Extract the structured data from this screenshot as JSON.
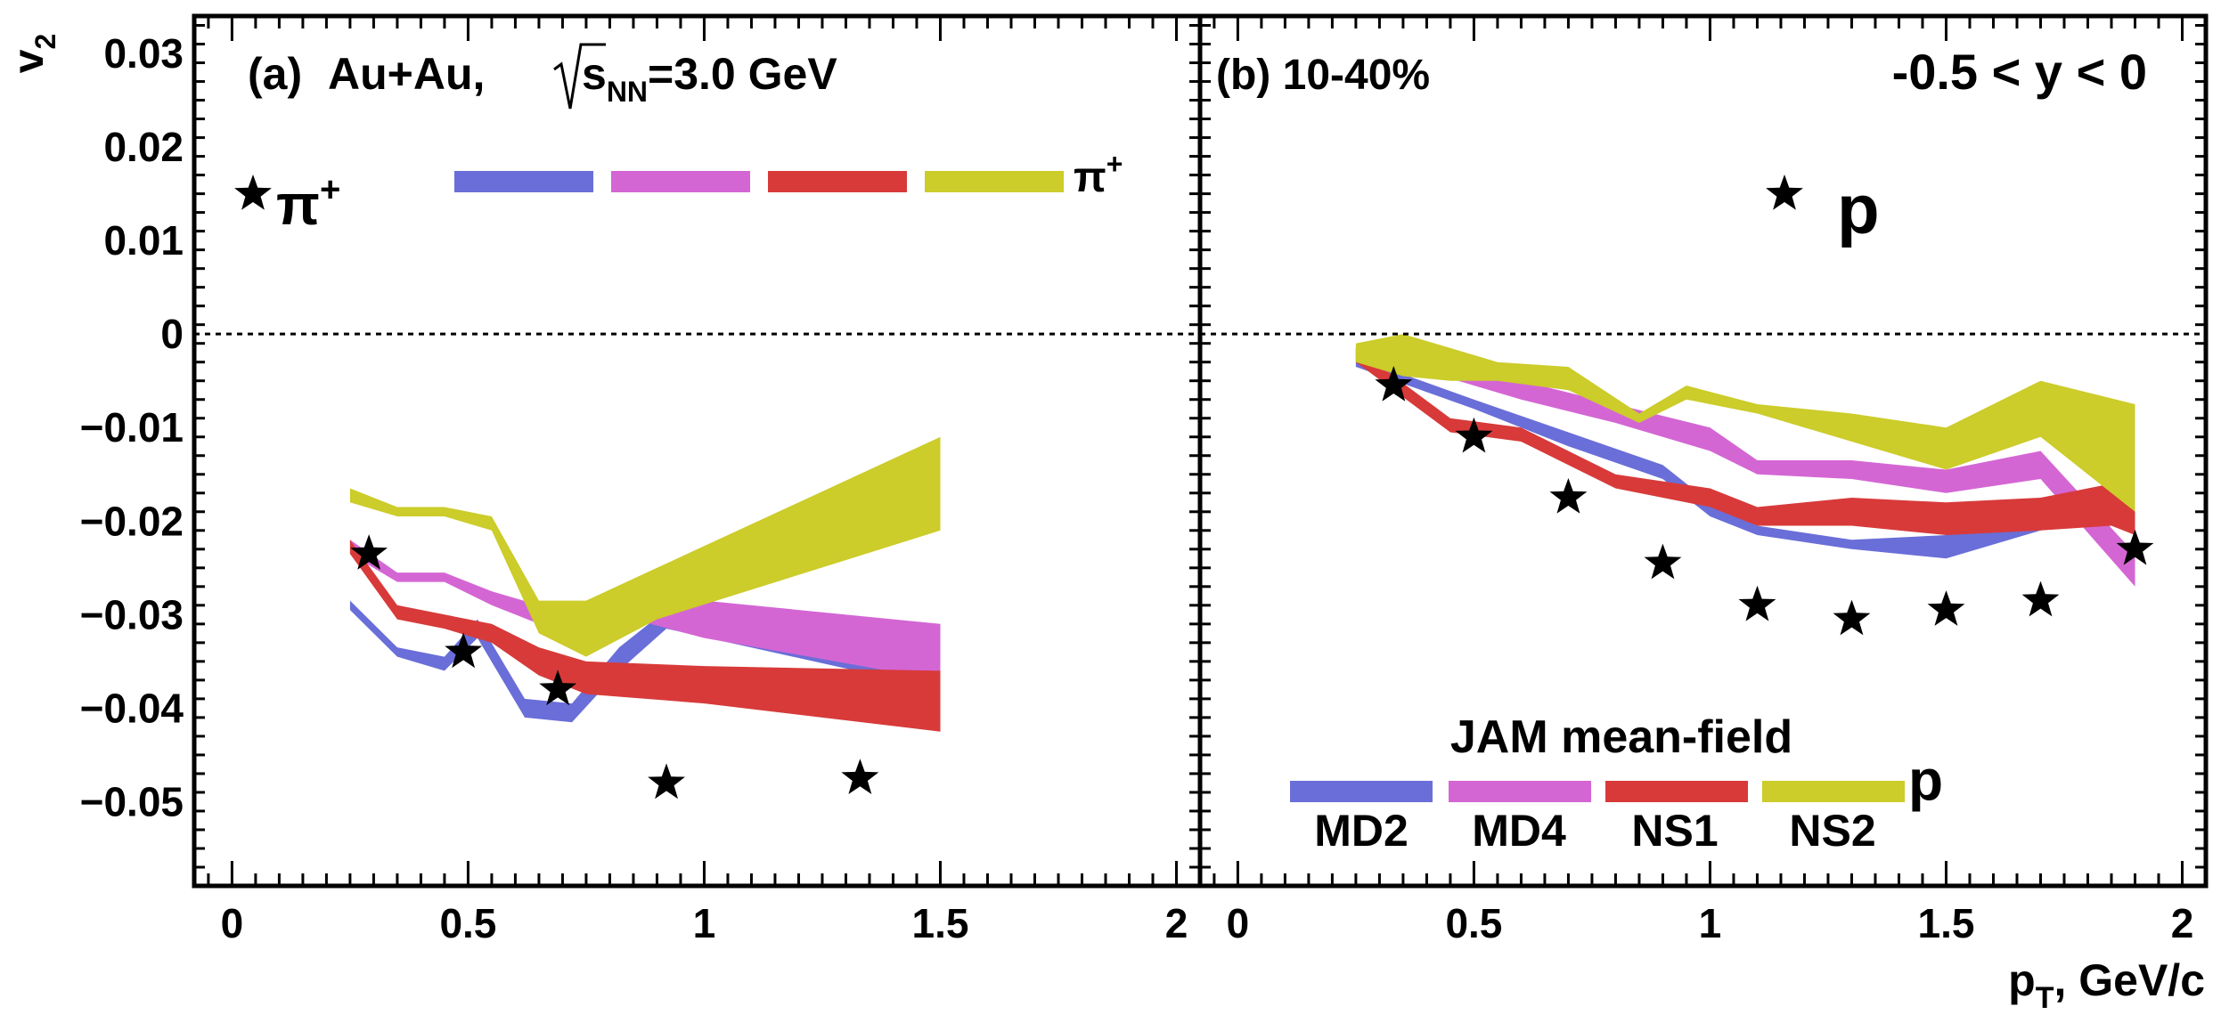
{
  "figure": {
    "y_axis_label": "v",
    "y_axis_label_sub": "2",
    "x_axis_label": "p",
    "x_axis_label_sub": "T",
    "x_axis_label_unit": ", GeV/c",
    "y_tick_labels": [
      "0.03",
      "0.02",
      "0.01",
      "0",
      "−0.01",
      "−0.02",
      "−0.03",
      "−0.04",
      "−0.05"
    ],
    "x_tick_labels": [
      "0",
      "0.5",
      "1",
      "1.5",
      "2"
    ],
    "colors": {
      "MD2": "#6a6ed8",
      "MD4": "#d466d4",
      "NS1": "#d83a3a",
      "NS2": "#cccc2a"
    }
  },
  "panel_a": {
    "label_a": "(a)",
    "system": "Au+Au,",
    "energy_root": "s",
    "energy_sub": "NN",
    "energy_value": "=3.0 GeV",
    "data_legend": "π",
    "data_legend_sup": "+",
    "model_legend": "π",
    "model_legend_sup": "+"
  },
  "panel_b": {
    "label_b": "(b) 10-40%",
    "rapidity": "-0.5 < y <  0",
    "data_legend": "p",
    "model_title": "JAM mean-field",
    "model_legend": "p",
    "model_names": [
      "MD2",
      "MD4",
      "NS1",
      "NS2"
    ]
  },
  "chart_data": [
    {
      "type": "line",
      "title": "(a) Au+Au, √s_NN=3.0 GeV — π+",
      "xlabel": "p_T, GeV/c",
      "ylabel": "v_2",
      "xlim": [
        -0.08,
        2.05
      ],
      "ylim": [
        -0.059,
        0.034
      ],
      "data_points": {
        "name": "π+ (data)",
        "x": [
          0.29,
          0.49,
          0.69,
          0.92,
          1.33
        ],
        "y": [
          -0.0235,
          -0.034,
          -0.038,
          -0.048,
          -0.0475
        ]
      },
      "bands": [
        {
          "name": "MD2",
          "x": [
            0.25,
            0.35,
            0.45,
            0.52,
            0.62,
            0.72,
            0.82,
            0.92,
            1.5
          ],
          "lo": [
            -0.0295,
            -0.0345,
            -0.036,
            -0.0325,
            -0.041,
            -0.0415,
            -0.036,
            -0.0315,
            -0.038
          ],
          "hi": [
            -0.0285,
            -0.0335,
            -0.0345,
            -0.0305,
            -0.039,
            -0.0395,
            -0.0335,
            -0.0295,
            -0.0355
          ]
        },
        {
          "name": "MD4",
          "x": [
            0.25,
            0.35,
            0.45,
            0.55,
            0.65,
            0.75,
            0.85,
            1.0,
            1.5
          ],
          "lo": [
            -0.0235,
            -0.0265,
            -0.0265,
            -0.029,
            -0.031,
            -0.0315,
            -0.0305,
            -0.0325,
            -0.037
          ],
          "hi": [
            -0.022,
            -0.0255,
            -0.0255,
            -0.0275,
            -0.029,
            -0.0295,
            -0.0285,
            -0.0285,
            -0.031
          ]
        },
        {
          "name": "NS1",
          "x": [
            0.25,
            0.35,
            0.45,
            0.55,
            0.65,
            0.75,
            1.0,
            1.5
          ],
          "lo": [
            -0.0235,
            -0.0305,
            -0.0315,
            -0.033,
            -0.0365,
            -0.0385,
            -0.0395,
            -0.0425
          ],
          "hi": [
            -0.022,
            -0.029,
            -0.03,
            -0.031,
            -0.0335,
            -0.035,
            -0.0355,
            -0.036
          ]
        },
        {
          "name": "NS2",
          "x": [
            0.25,
            0.35,
            0.45,
            0.55,
            0.65,
            0.75,
            0.9,
            1.5
          ],
          "lo": [
            -0.018,
            -0.0195,
            -0.0195,
            -0.021,
            -0.032,
            -0.0345,
            -0.0305,
            -0.021
          ],
          "hi": [
            -0.0165,
            -0.0185,
            -0.0185,
            -0.0195,
            -0.0285,
            -0.0285,
            -0.025,
            -0.011
          ]
        }
      ]
    },
    {
      "type": "line",
      "title": "(b) 10-40%, -0.5 < y < 0 — p",
      "xlabel": "p_T, GeV/c",
      "ylabel": "v_2",
      "xlim": [
        -0.08,
        2.05
      ],
      "ylim": [
        -0.059,
        0.034
      ],
      "data_points": {
        "name": "p (data)",
        "x": [
          0.33,
          0.5,
          0.7,
          0.9,
          1.1,
          1.3,
          1.5,
          1.7,
          1.9
        ],
        "y": [
          -0.0055,
          -0.011,
          -0.0175,
          -0.0245,
          -0.029,
          -0.0305,
          -0.0295,
          -0.0285,
          -0.023
        ]
      },
      "bands": [
        {
          "name": "MD2",
          "x": [
            0.25,
            0.5,
            0.7,
            0.9,
            1.0,
            1.1,
            1.3,
            1.5,
            1.7,
            1.9
          ],
          "lo": [
            -0.0035,
            -0.008,
            -0.012,
            -0.0155,
            -0.0195,
            -0.0215,
            -0.023,
            -0.024,
            -0.021,
            -0.0195
          ],
          "hi": [
            -0.0025,
            -0.007,
            -0.0105,
            -0.014,
            -0.018,
            -0.0205,
            -0.022,
            -0.0215,
            -0.019,
            -0.0185
          ]
        },
        {
          "name": "MD4",
          "x": [
            0.25,
            0.4,
            0.6,
            0.8,
            1.0,
            1.1,
            1.3,
            1.5,
            1.7,
            1.9
          ],
          "lo": [
            -0.003,
            -0.004,
            -0.007,
            -0.0095,
            -0.0125,
            -0.015,
            -0.0155,
            -0.017,
            -0.0155,
            -0.027
          ],
          "hi": [
            -0.0015,
            -0.002,
            -0.005,
            -0.0075,
            -0.01,
            -0.0135,
            -0.0135,
            -0.0145,
            -0.0125,
            -0.0235
          ]
        },
        {
          "name": "NS1",
          "x": [
            0.25,
            0.45,
            0.6,
            0.8,
            1.0,
            1.1,
            1.3,
            1.5,
            1.7,
            1.85,
            1.9
          ],
          "lo": [
            -0.003,
            -0.0105,
            -0.0115,
            -0.0165,
            -0.0185,
            -0.0205,
            -0.0205,
            -0.0215,
            -0.021,
            -0.0205,
            -0.0215
          ],
          "hi": [
            -0.0015,
            -0.009,
            -0.01,
            -0.015,
            -0.0165,
            -0.0185,
            -0.0175,
            -0.018,
            -0.0175,
            -0.016,
            -0.018
          ]
        },
        {
          "name": "NS2",
          "x": [
            0.25,
            0.35,
            0.45,
            0.55,
            0.7,
            0.85,
            0.95,
            1.1,
            1.3,
            1.5,
            1.7,
            1.9
          ],
          "lo": [
            -0.003,
            -0.0045,
            -0.005,
            -0.005,
            -0.006,
            -0.0095,
            -0.007,
            -0.0085,
            -0.0115,
            -0.0145,
            -0.011,
            -0.019
          ],
          "hi": [
            -0.001,
            0.0,
            -0.0015,
            -0.003,
            -0.0035,
            -0.0085,
            -0.0055,
            -0.0075,
            -0.0085,
            -0.01,
            -0.005,
            -0.0075
          ]
        }
      ]
    }
  ]
}
